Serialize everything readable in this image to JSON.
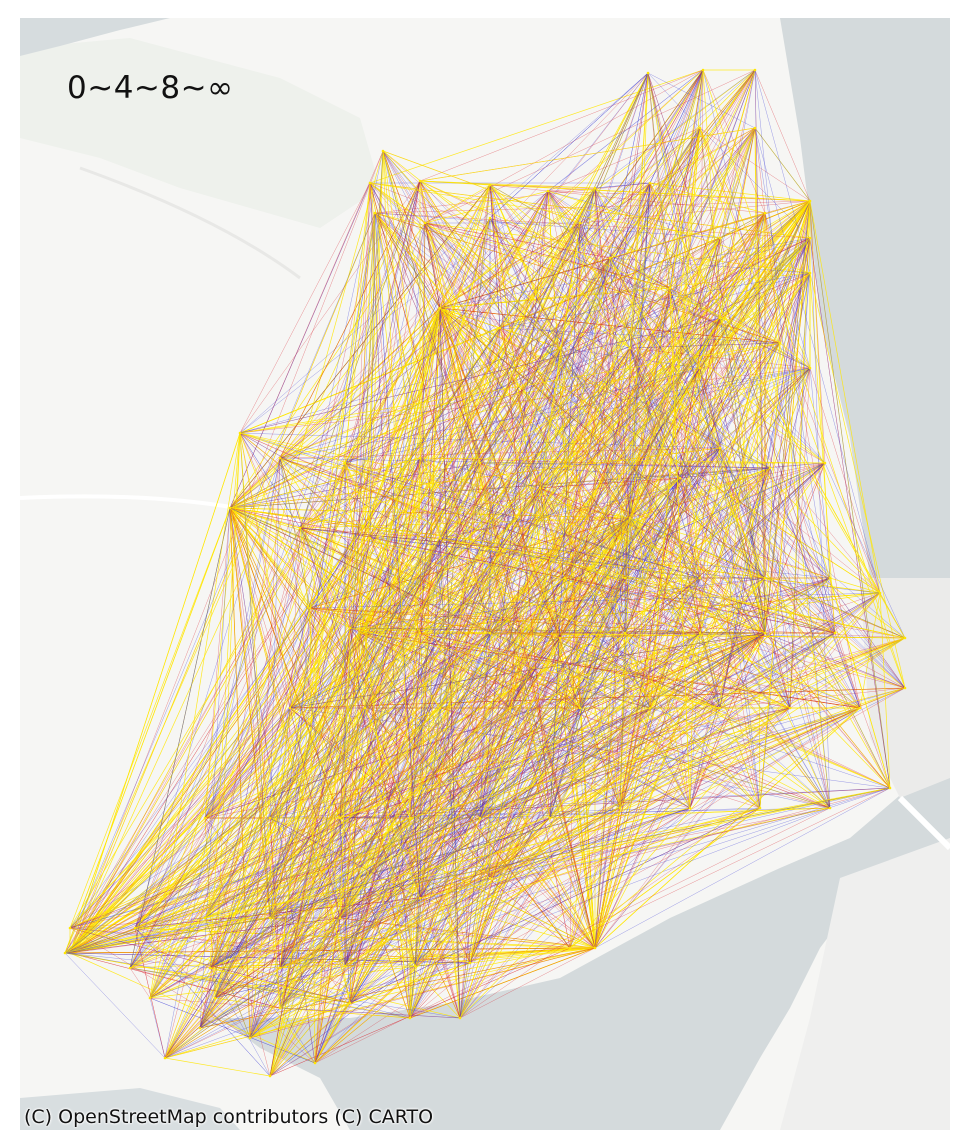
{
  "map": {
    "legend_text": "0~4~8~∞",
    "attribution": "(C) OpenStreetMap contributors (C) CARTO",
    "basemap_style": "CARTO light",
    "colors": {
      "land": "#f5f5f3",
      "water": "#d4dadc",
      "green": "#eef1ec",
      "roads": "#ffffff",
      "flow_low": "#3b3bd6",
      "flow_mid": "#d8242f",
      "flow_high": "#ffe600"
    },
    "flow_classes": [
      "0~4",
      "4~8",
      "8~∞"
    ]
  }
}
